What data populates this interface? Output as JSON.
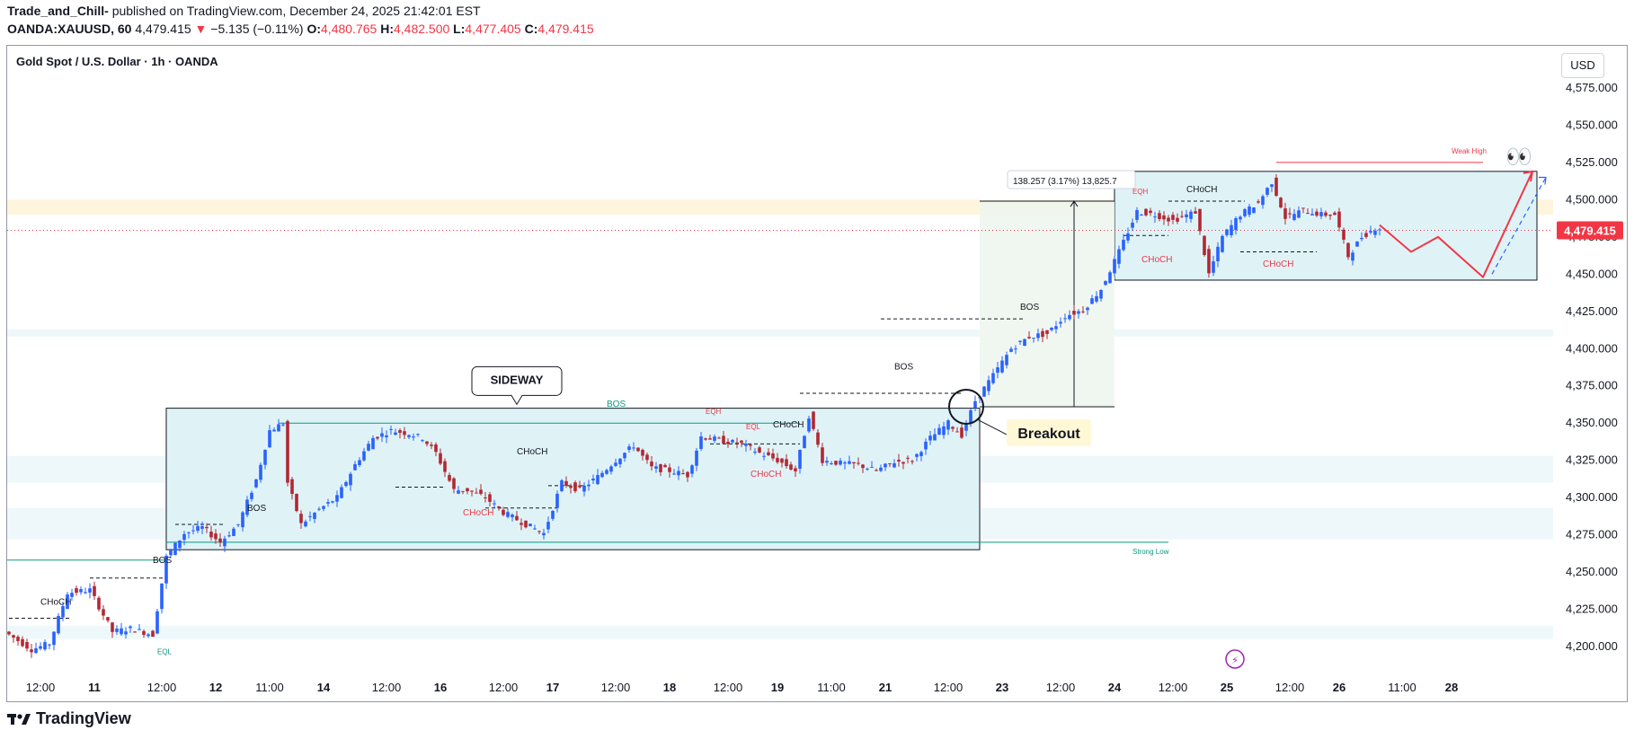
{
  "header": {
    "author": "Trade_and_Chill-",
    "published_text": "published on TradingView.com, December 24, 2025 21:42:01 EST",
    "symbol": "OANDA:XAUUSD, 60",
    "last": "4,479.415",
    "arrow": "▼",
    "change": "−5.135 (−0.11%)",
    "o_label": "O:",
    "o_value": "4,480.765",
    "h_label": "H:",
    "h_value": "4,482.500",
    "l_label": "L:",
    "l_value": "4,477.405",
    "c_label": "C:",
    "c_value": "4,479.415"
  },
  "footer": {
    "brand": "TradingView"
  },
  "currency": "USD",
  "colors": {
    "up": "#2962ff",
    "down": "#b22833",
    "zone": "#dff3f7",
    "red": "#f23645",
    "green": "#089981"
  },
  "chart_data": {
    "type": "candlestick",
    "title": "Gold Spot / U.S. Dollar · 1h · OANDA",
    "ylim": [
      4190,
      4595
    ],
    "y_ticks": [
      "4,575.000",
      "4,550.000",
      "4,525.000",
      "4,500.000",
      "4,475.000",
      "4,450.000",
      "4,425.000",
      "4,400.000",
      "4,375.000",
      "4,350.000",
      "4,325.000",
      "4,300.000",
      "4,275.000",
      "4,250.000",
      "4,225.000",
      "4,200.000"
    ],
    "y_tick_values": [
      4575,
      4550,
      4525,
      4500,
      4475,
      4450,
      4425,
      4400,
      4375,
      4350,
      4325,
      4300,
      4275,
      4250,
      4225,
      4200
    ],
    "x_ticks": [
      "12:00",
      "11",
      "12:00",
      "12",
      "11:00",
      "14",
      "12:00",
      "16",
      "12:00",
      "17",
      "12:00",
      "18",
      "12:00",
      "19",
      "11:00",
      "21",
      "12:00",
      "23",
      "12:00",
      "24",
      "12:00",
      "25",
      "12:00",
      "26",
      "11:00",
      "28"
    ],
    "x_tick_index": [
      7,
      19,
      34,
      46,
      58,
      70,
      84,
      96,
      110,
      121,
      135,
      147,
      160,
      171,
      183,
      195,
      209,
      221,
      234,
      246,
      259,
      271,
      285,
      296,
      310,
      321
    ],
    "bars": 310,
    "current_price": "4,479.415",
    "current_price_value": 4479.415,
    "price_path": [
      [
        0,
        4210
      ],
      [
        6,
        4198
      ],
      [
        10,
        4202
      ],
      [
        14,
        4236
      ],
      [
        19,
        4238
      ],
      [
        24,
        4210
      ],
      [
        28,
        4212
      ],
      [
        33,
        4208
      ],
      [
        36,
        4260
      ],
      [
        40,
        4276
      ],
      [
        44,
        4280
      ],
      [
        48,
        4270
      ],
      [
        52,
        4282
      ],
      [
        56,
        4312
      ],
      [
        59,
        4345
      ],
      [
        62,
        4350
      ],
      [
        63,
        4310
      ],
      [
        66,
        4282
      ],
      [
        70,
        4292
      ],
      [
        74,
        4300
      ],
      [
        78,
        4322
      ],
      [
        82,
        4340
      ],
      [
        86,
        4345
      ],
      [
        90,
        4343
      ],
      [
        93,
        4340
      ],
      [
        96,
        4330
      ],
      [
        100,
        4305
      ],
      [
        103,
        4305
      ],
      [
        107,
        4300
      ],
      [
        111,
        4290
      ],
      [
        116,
        4282
      ],
      [
        120,
        4276
      ],
      [
        124,
        4310
      ],
      [
        128,
        4305
      ],
      [
        132,
        4314
      ],
      [
        136,
        4325
      ],
      [
        140,
        4335
      ],
      [
        144,
        4320
      ],
      [
        148,
        4318
      ],
      [
        152,
        4315
      ],
      [
        155,
        4341
      ],
      [
        160,
        4338
      ],
      [
        164,
        4336
      ],
      [
        168,
        4330
      ],
      [
        172,
        4325
      ],
      [
        176,
        4318
      ],
      [
        179,
        4355
      ],
      [
        182,
        4325
      ],
      [
        186,
        4323
      ],
      [
        190,
        4322
      ],
      [
        194,
        4318
      ],
      [
        198,
        4324
      ],
      [
        202,
        4325
      ],
      [
        206,
        4340
      ],
      [
        210,
        4350
      ],
      [
        213,
        4342
      ],
      [
        216,
        4365
      ],
      [
        220,
        4382
      ],
      [
        224,
        4400
      ],
      [
        228,
        4408
      ],
      [
        232,
        4410
      ],
      [
        236,
        4422
      ],
      [
        240,
        4426
      ],
      [
        244,
        4440
      ],
      [
        248,
        4465
      ],
      [
        252,
        4492
      ],
      [
        256,
        4490
      ],
      [
        260,
        4486
      ],
      [
        265,
        4492
      ],
      [
        268,
        4450
      ],
      [
        271,
        4475
      ],
      [
        275,
        4490
      ],
      [
        279,
        4498
      ],
      [
        282,
        4512
      ],
      [
        285,
        4488
      ],
      [
        289,
        4493
      ],
      [
        293,
        4490
      ],
      [
        296,
        4490
      ],
      [
        299,
        4462
      ],
      [
        302,
        4475
      ],
      [
        305,
        4481
      ]
    ],
    "sideway_zone": {
      "x_from": 35,
      "x_to": 216,
      "y_from": 4265,
      "y_to": 4360
    },
    "range_zone": {
      "x_from": 246,
      "x_to": 340,
      "y_from": 4446,
      "y_to": 4519
    },
    "measure": {
      "label": "138.257 (3.17%) 13,825.7",
      "x": 237,
      "y_from": 4361,
      "y_to": 4499
    },
    "projection": {
      "solid": [
        [
          305,
          4483
        ],
        [
          312,
          4465
        ],
        [
          318,
          4475
        ],
        [
          328,
          4448
        ],
        [
          339,
          4519
        ]
      ],
      "dashed": [
        [
          330,
          4450
        ],
        [
          342,
          4515
        ]
      ]
    },
    "annotations": {
      "sideway": "SIDEWAY",
      "breakout": "Breakout",
      "weak_high": "Weak High",
      "strong_low": "Strong Low",
      "eyes": "👀",
      "bolt": "⚡",
      "labels": [
        {
          "text": "CHoCH",
          "x": 7,
          "y": 4228,
          "color": "#131722"
        },
        {
          "text": "EQL",
          "x": 33,
          "y": 4195,
          "color": "#089981"
        },
        {
          "text": "BOS",
          "x": 32,
          "y": 4256,
          "color": "#131722"
        },
        {
          "text": "BOS",
          "x": 53,
          "y": 4291,
          "color": "#131722"
        },
        {
          "text": "CHoCH",
          "x": 113,
          "y": 4329,
          "color": "#131722"
        },
        {
          "text": "CHoCH",
          "x": 101,
          "y": 4288,
          "color": "#f23645"
        },
        {
          "text": "BOS",
          "x": 133,
          "y": 4361,
          "color": "#089981"
        },
        {
          "text": "EQH",
          "x": 155,
          "y": 4356,
          "color": "#f23645"
        },
        {
          "text": "EQL",
          "x": 164,
          "y": 4346,
          "color": "#f23645"
        },
        {
          "text": "CHoCH",
          "x": 170,
          "y": 4347,
          "color": "#131722"
        },
        {
          "text": "CHoCH",
          "x": 165,
          "y": 4314,
          "color": "#f23645"
        },
        {
          "text": "BOS",
          "x": 197,
          "y": 4386,
          "color": "#131722"
        },
        {
          "text": "BOS",
          "x": 225,
          "y": 4426,
          "color": "#131722"
        },
        {
          "text": "EQH",
          "x": 250,
          "y": 4504,
          "color": "#f23645"
        },
        {
          "text": "CHoCH",
          "x": 262,
          "y": 4505,
          "color": "#131722"
        },
        {
          "text": "CHoCH",
          "x": 252,
          "y": 4458,
          "color": "#f23645"
        },
        {
          "text": "CHoCH",
          "x": 279,
          "y": 4455,
          "color": "#f23645"
        }
      ]
    }
  }
}
